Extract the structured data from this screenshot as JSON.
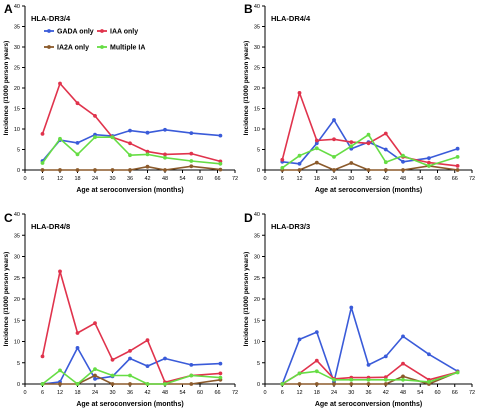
{
  "legend": [
    {
      "name": "GADA only",
      "color": "#3a5bd9"
    },
    {
      "name": "IA2A only",
      "color": "#8b5a2b"
    },
    {
      "name": "IAA only",
      "color": "#e0334c"
    },
    {
      "name": "Multiple IA",
      "color": "#66dd44"
    }
  ],
  "chart_data": [
    {
      "type": "line",
      "panel_letter": "A",
      "title": "HLA-DR3/4",
      "xlabel": "Age at seroconversion (months)",
      "ylabel": "Incidence  (/1000 person years)",
      "xlim": [
        0,
        72
      ],
      "ylim": [
        0,
        40
      ],
      "xticks": [
        0,
        6,
        12,
        18,
        24,
        30,
        36,
        42,
        48,
        54,
        60,
        66,
        72
      ],
      "yticks": [
        0,
        5,
        10,
        15,
        20,
        25,
        30,
        35,
        40
      ],
      "grid": false,
      "legend_position": "top",
      "series": [
        {
          "name": "GADA only",
          "color": "#3a5bd9",
          "x": [
            6,
            12,
            18,
            24,
            30,
            36,
            42,
            48,
            57,
            67
          ],
          "y": [
            2.2,
            7.3,
            6.6,
            8.6,
            8.3,
            9.6,
            9.1,
            9.8,
            9.0,
            8.4
          ]
        },
        {
          "name": "IA2A only",
          "color": "#8b5a2b",
          "x": [
            6,
            12,
            18,
            24,
            30,
            36,
            42,
            48,
            57,
            67
          ],
          "y": [
            0,
            0,
            0,
            0,
            0,
            0,
            0.8,
            0,
            0.9,
            0.1
          ]
        },
        {
          "name": "IAA only",
          "color": "#e0334c",
          "x": [
            6,
            12,
            18,
            24,
            30,
            36,
            42,
            48,
            57,
            67
          ],
          "y": [
            8.8,
            21.1,
            16.3,
            13.2,
            8.0,
            6.5,
            4.5,
            3.8,
            4.0,
            2.1
          ]
        },
        {
          "name": "Multiple IA",
          "color": "#66dd44",
          "x": [
            6,
            12,
            18,
            24,
            30,
            36,
            42,
            48,
            57,
            67
          ],
          "y": [
            1.7,
            7.6,
            3.8,
            8.0,
            8.0,
            3.6,
            3.8,
            3.0,
            2.2,
            1.5
          ]
        }
      ]
    },
    {
      "type": "line",
      "panel_letter": "B",
      "title": "HLA-DR4/4",
      "xlabel": "Age at seroconversion (months)",
      "ylabel": "Incidence  (/1000 person years)",
      "xlim": [
        0,
        72
      ],
      "ylim": [
        0,
        40
      ],
      "xticks": [
        0,
        6,
        12,
        18,
        24,
        30,
        36,
        42,
        48,
        54,
        60,
        66,
        72
      ],
      "yticks": [
        0,
        5,
        10,
        15,
        20,
        25,
        30,
        35,
        40
      ],
      "grid": false,
      "series": [
        {
          "name": "GADA only",
          "color": "#3a5bd9",
          "x": [
            6,
            12,
            18,
            24,
            30,
            36,
            42,
            48,
            57,
            67
          ],
          "y": [
            2.0,
            1.5,
            6.5,
            12.2,
            5.2,
            6.8,
            5.0,
            2.0,
            2.9,
            5.2
          ]
        },
        {
          "name": "IA2A only",
          "color": "#8b5a2b",
          "x": [
            6,
            12,
            18,
            24,
            30,
            36,
            42,
            48,
            57,
            67
          ],
          "y": [
            0,
            0,
            1.8,
            0,
            1.7,
            0,
            0,
            0,
            1.0,
            0
          ]
        },
        {
          "name": "IAA only",
          "color": "#e0334c",
          "x": [
            6,
            12,
            18,
            24,
            30,
            36,
            42,
            48,
            57,
            67
          ],
          "y": [
            2.5,
            18.8,
            7.2,
            7.5,
            6.8,
            6.5,
            8.9,
            3.2,
            1.8,
            1.0
          ]
        },
        {
          "name": "Multiple IA",
          "color": "#66dd44",
          "x": [
            6,
            12,
            18,
            24,
            30,
            36,
            42,
            48,
            57,
            67
          ],
          "y": [
            0.5,
            3.5,
            5.3,
            3.2,
            5.8,
            8.6,
            1.9,
            3.5,
            1.0,
            3.2
          ]
        }
      ]
    },
    {
      "type": "line",
      "panel_letter": "C",
      "title": "HLA-DR4/8",
      "xlabel": "Age at seroconversion (months)",
      "ylabel": "Incidence  (/1000 person years)",
      "xlim": [
        0,
        72
      ],
      "ylim": [
        0,
        40
      ],
      "xticks": [
        0,
        6,
        12,
        18,
        24,
        30,
        36,
        42,
        48,
        54,
        60,
        66,
        72
      ],
      "yticks": [
        0,
        5,
        10,
        15,
        20,
        25,
        30,
        35,
        40
      ],
      "grid": false,
      "series": [
        {
          "name": "GADA only",
          "color": "#3a5bd9",
          "x": [
            6,
            12,
            18,
            24,
            30,
            36,
            42,
            48,
            57,
            67
          ],
          "y": [
            0,
            0.5,
            8.5,
            1.2,
            1.8,
            6.0,
            4.2,
            6.0,
            4.5,
            4.8
          ]
        },
        {
          "name": "IA2A only",
          "color": "#8b5a2b",
          "x": [
            6,
            12,
            18,
            24,
            30,
            36,
            42,
            48,
            57,
            67
          ],
          "y": [
            0,
            0,
            0,
            2.0,
            0,
            0,
            0,
            0,
            0,
            1.0
          ]
        },
        {
          "name": "IAA only",
          "color": "#e0334c",
          "x": [
            6,
            12,
            18,
            24,
            30,
            36,
            42,
            48,
            57,
            67
          ],
          "y": [
            6.5,
            26.5,
            12.0,
            14.3,
            5.7,
            7.8,
            10.3,
            0.4,
            2.0,
            2.5
          ]
        },
        {
          "name": "Multiple IA",
          "color": "#66dd44",
          "x": [
            6,
            12,
            18,
            24,
            30,
            36,
            42,
            48,
            57,
            67
          ],
          "y": [
            0,
            3.2,
            0,
            3.5,
            2.0,
            2.0,
            0,
            0,
            2.0,
            1.5
          ]
        }
      ]
    },
    {
      "type": "line",
      "panel_letter": "D",
      "title": "HLA-DR3/3",
      "xlabel": "Age at seroconversion (months)",
      "ylabel": "Incidence  (/1000 person years)",
      "xlim": [
        0,
        72
      ],
      "ylim": [
        0,
        40
      ],
      "xticks": [
        0,
        6,
        12,
        18,
        24,
        30,
        36,
        42,
        48,
        54,
        60,
        66,
        72
      ],
      "yticks": [
        0,
        5,
        10,
        15,
        20,
        25,
        30,
        35,
        40
      ],
      "grid": false,
      "series": [
        {
          "name": "GADA only",
          "color": "#3a5bd9",
          "x": [
            6,
            12,
            18,
            24,
            30,
            36,
            42,
            48,
            57,
            67
          ],
          "y": [
            0,
            10.5,
            12.2,
            0.5,
            18.0,
            4.5,
            6.5,
            11.2,
            7.0,
            3.0
          ]
        },
        {
          "name": "IA2A only",
          "color": "#8b5a2b",
          "x": [
            6,
            12,
            18,
            24,
            30,
            36,
            42,
            48,
            57,
            67
          ],
          "y": [
            0,
            0,
            0,
            0,
            0,
            0,
            0,
            1.8,
            0,
            2.8
          ]
        },
        {
          "name": "IAA only",
          "color": "#e0334c",
          "x": [
            6,
            12,
            18,
            24,
            30,
            36,
            42,
            48,
            57,
            67
          ],
          "y": [
            0,
            2.5,
            5.5,
            1.2,
            1.5,
            1.5,
            1.6,
            4.8,
            1.0,
            2.8
          ]
        },
        {
          "name": "Multiple IA",
          "color": "#66dd44",
          "x": [
            6,
            12,
            18,
            24,
            30,
            36,
            42,
            48,
            57,
            67
          ],
          "y": [
            0,
            2.5,
            3.0,
            1.0,
            1.0,
            1.0,
            1.0,
            1.0,
            0.5,
            2.7
          ]
        }
      ]
    }
  ]
}
